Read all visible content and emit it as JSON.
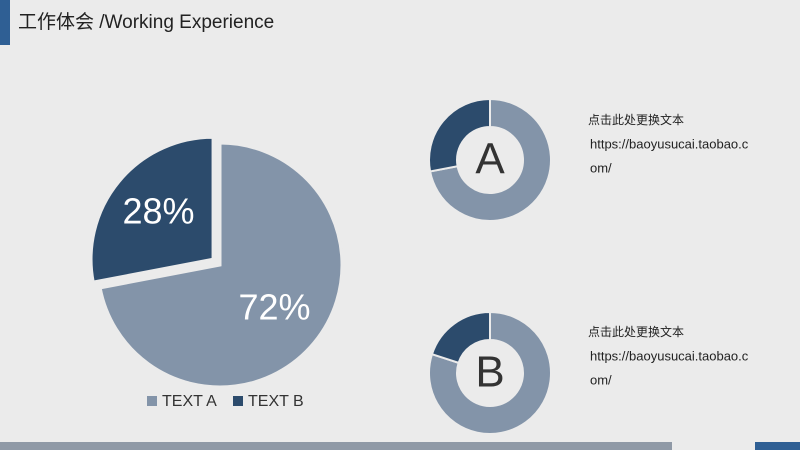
{
  "header": {
    "title": "工作体会 /Working Experience"
  },
  "chart_data": [
    {
      "type": "pie",
      "categories": [
        "TEXT A",
        "TEXT B"
      ],
      "values": [
        72,
        28
      ],
      "value_labels": [
        "72%",
        "28%"
      ],
      "colors": [
        "#8394a9",
        "#2c4b6c"
      ],
      "legend": "bottom"
    },
    {
      "type": "donut",
      "center_label": "A",
      "values": [
        72,
        28
      ],
      "colors": [
        "#8394a9",
        "#2c4b6c"
      ]
    },
    {
      "type": "donut",
      "center_label": "B",
      "values": [
        80,
        20
      ],
      "colors": [
        "#8394a9",
        "#2c4b6c"
      ]
    }
  ],
  "notes": [
    {
      "title": "点击此处更换文本",
      "lines": [
        "https://baoyusucai.taobao.c",
        "om/"
      ]
    },
    {
      "title": "点击此处更换文本",
      "lines": [
        "https://baoyusucai.taobao.c",
        "om/"
      ]
    }
  ]
}
